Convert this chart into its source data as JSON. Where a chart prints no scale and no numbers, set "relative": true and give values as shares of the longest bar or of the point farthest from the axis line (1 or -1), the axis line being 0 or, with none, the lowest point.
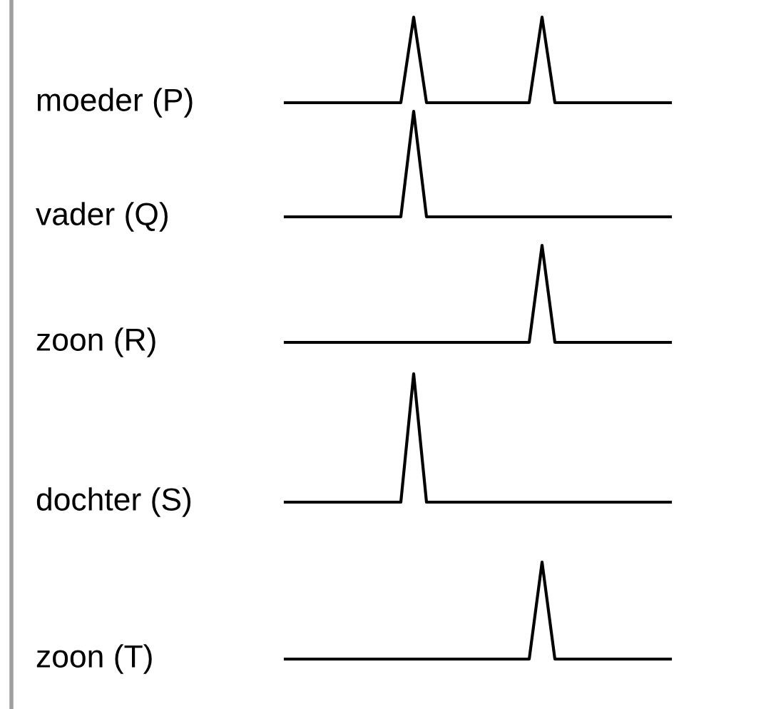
{
  "chart_data": [
    {
      "type": "line",
      "relative": true,
      "ylabel": "moeder (P)",
      "categories": [
        null,
        null,
        null,
        null,
        null,
        null,
        null,
        null,
        null,
        null,
        null,
        null,
        null,
        null,
        null,
        null,
        null,
        null,
        null,
        null,
        null,
        null,
        null,
        null,
        null,
        null,
        null,
        null,
        null,
        null,
        null
      ],
      "series": [
        {
          "color": "#000000",
          "values": [
            0,
            0,
            0,
            0,
            0,
            0,
            0,
            0,
            0,
            0,
            1,
            0,
            0,
            0,
            0,
            0,
            0,
            0,
            0,
            0,
            1,
            0,
            0,
            0,
            0,
            0,
            0,
            0,
            0,
            0,
            0
          ]
        }
      ]
    },
    {
      "type": "line",
      "relative": true,
      "ylabel": "vader (Q)",
      "categories": [
        null,
        null,
        null,
        null,
        null,
        null,
        null,
        null,
        null,
        null,
        null,
        null,
        null,
        null,
        null,
        null,
        null,
        null,
        null,
        null,
        null,
        null,
        null,
        null,
        null,
        null,
        null,
        null,
        null,
        null,
        null
      ],
      "series": [
        {
          "color": "#000000",
          "values": [
            0,
            0,
            0,
            0,
            0,
            0,
            0,
            0,
            0,
            0,
            1,
            0,
            0,
            0,
            0,
            0,
            0,
            0,
            0,
            0,
            0,
            0,
            0,
            0,
            0,
            0,
            0,
            0,
            0,
            0,
            0
          ]
        }
      ]
    },
    {
      "type": "line",
      "relative": true,
      "ylabel": "zoon (R)",
      "categories": [
        null,
        null,
        null,
        null,
        null,
        null,
        null,
        null,
        null,
        null,
        null,
        null,
        null,
        null,
        null,
        null,
        null,
        null,
        null,
        null,
        null,
        null,
        null,
        null,
        null,
        null,
        null,
        null,
        null,
        null,
        null
      ],
      "series": [
        {
          "color": "#000000",
          "values": [
            0,
            0,
            0,
            0,
            0,
            0,
            0,
            0,
            0,
            0,
            0,
            0,
            0,
            0,
            0,
            0,
            0,
            0,
            0,
            0,
            1,
            0,
            0,
            0,
            0,
            0,
            0,
            0,
            0,
            0,
            0
          ]
        }
      ]
    },
    {
      "type": "line",
      "relative": true,
      "ylabel": "dochter (S)",
      "categories": [
        null,
        null,
        null,
        null,
        null,
        null,
        null,
        null,
        null,
        null,
        null,
        null,
        null,
        null,
        null,
        null,
        null,
        null,
        null,
        null,
        null,
        null,
        null,
        null,
        null,
        null,
        null,
        null,
        null,
        null,
        null
      ],
      "series": [
        {
          "color": "#000000",
          "values": [
            0,
            0,
            0,
            0,
            0,
            0,
            0,
            0,
            0,
            0,
            1,
            0,
            0,
            0,
            0,
            0,
            0,
            0,
            0,
            0,
            0,
            0,
            0,
            0,
            0,
            0,
            0,
            0,
            0,
            0,
            0
          ]
        }
      ]
    },
    {
      "type": "line",
      "relative": true,
      "ylabel": "zoon (T)",
      "categories": [
        null,
        null,
        null,
        null,
        null,
        null,
        null,
        null,
        null,
        null,
        null,
        null,
        null,
        null,
        null,
        null,
        null,
        null,
        null,
        null,
        null,
        null,
        null,
        null,
        null,
        null,
        null,
        null,
        null,
        null,
        null
      ],
      "series": [
        {
          "color": "#000000",
          "values": [
            0,
            0,
            0,
            0,
            0,
            0,
            0,
            0,
            0,
            0,
            0,
            0,
            0,
            0,
            0,
            0,
            0,
            0,
            0,
            0,
            1,
            0,
            0,
            0,
            0,
            0,
            0,
            0,
            0,
            0,
            0
          ]
        }
      ]
    }
  ]
}
